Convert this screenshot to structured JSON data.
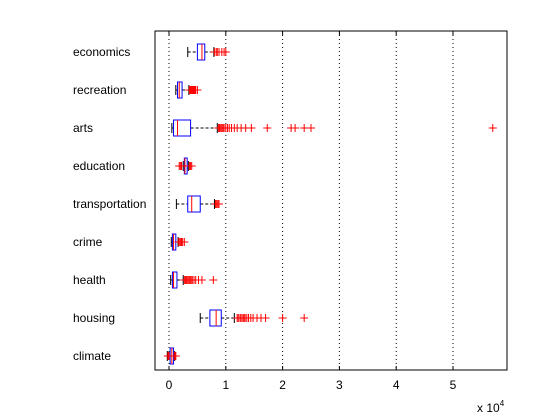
{
  "chart_data": {
    "type": "boxplot",
    "orientation": "horizontal",
    "categories": [
      "economics",
      "recreation",
      "arts",
      "education",
      "transportation",
      "crime",
      "health",
      "housing",
      "climate"
    ],
    "x_ticks": [
      0,
      1,
      2,
      3,
      4,
      5
    ],
    "x_scale_label": "x 10",
    "x_scale_exponent": "4",
    "xlim": [
      -0.25,
      5.9
    ],
    "grid": "vertical dotted",
    "colors": {
      "box": "#0000ff",
      "median": "#ff0000",
      "whisker": "#000000",
      "outlier": "#ff0000"
    },
    "boxes": [
      {
        "name": "economics",
        "whisker_low": 0.33,
        "q1": 0.5,
        "median": 0.58,
        "q3": 0.63,
        "whisker_high": 0.79,
        "outliers": [
          0.8,
          0.83,
          0.85,
          0.88,
          0.93,
          0.97,
          1.0
        ]
      },
      {
        "name": "recreation",
        "whisker_low": 0.12,
        "q1": 0.15,
        "median": 0.18,
        "q3": 0.23,
        "whisker_high": 0.35,
        "outliers": [
          0.36,
          0.37,
          0.38,
          0.39,
          0.4,
          0.41,
          0.42,
          0.43,
          0.44,
          0.45,
          0.46,
          0.47,
          0.5
        ]
      },
      {
        "name": "arts",
        "whisker_low": 0.05,
        "q1": 0.08,
        "median": 0.15,
        "q3": 0.38,
        "whisker_high": 0.85,
        "outliers": [
          0.87,
          0.89,
          0.91,
          0.93,
          0.95,
          0.97,
          1.0,
          1.03,
          1.06,
          1.1,
          1.15,
          1.2,
          1.27,
          1.35,
          1.45,
          1.73,
          2.15,
          2.22,
          2.38,
          2.5,
          5.7
        ]
      },
      {
        "name": "education",
        "whisker_low": 0.25,
        "q1": 0.27,
        "median": 0.28,
        "q3": 0.32,
        "whisker_high": 0.34,
        "outliers": [
          0.18,
          0.2,
          0.22,
          0.36,
          0.38,
          0.4
        ]
      },
      {
        "name": "transportation",
        "whisker_low": 0.13,
        "q1": 0.33,
        "median": 0.4,
        "q3": 0.55,
        "whisker_high": 0.8,
        "outliers": [
          0.82,
          0.84,
          0.86,
          0.88
        ]
      },
      {
        "name": "crime",
        "whisker_low": 0.04,
        "q1": 0.06,
        "median": 0.08,
        "q3": 0.12,
        "whisker_high": 0.16,
        "outliers": [
          0.17,
          0.18,
          0.2,
          0.22,
          0.24,
          0.27
        ]
      },
      {
        "name": "health",
        "whisker_low": 0.03,
        "q1": 0.06,
        "median": 0.08,
        "q3": 0.14,
        "whisker_high": 0.25,
        "outliers": [
          0.27,
          0.29,
          0.31,
          0.33,
          0.35,
          0.37,
          0.39,
          0.41,
          0.44,
          0.47,
          0.52,
          0.58,
          0.78
        ]
      },
      {
        "name": "housing",
        "whisker_low": 0.55,
        "q1": 0.72,
        "median": 0.83,
        "q3": 0.92,
        "whisker_high": 1.15,
        "outliers": [
          1.2,
          1.22,
          1.25,
          1.27,
          1.3,
          1.32,
          1.34,
          1.37,
          1.4,
          1.44,
          1.48,
          1.55,
          1.62,
          1.7,
          2.0,
          2.38
        ]
      },
      {
        "name": "climate",
        "whisker_low": -0.03,
        "q1": 0.02,
        "median": 0.05,
        "q3": 0.08,
        "whisker_high": 0.1,
        "outliers": [
          -0.02,
          -0.01,
          0.0,
          0.09,
          0.11,
          0.12
        ]
      }
    ]
  }
}
